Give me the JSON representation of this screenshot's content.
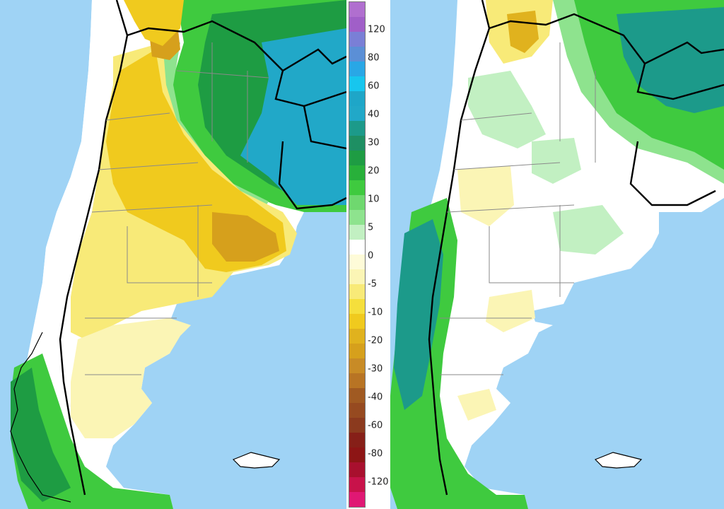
{
  "legend": {
    "labels": [
      "120",
      "80",
      "60",
      "40",
      "30",
      "20",
      "10",
      "5",
      "0",
      "-5",
      "-10",
      "-20",
      "-30",
      "-40",
      "-60",
      "-80",
      "-120"
    ],
    "label_colors": [
      "#a05fc8",
      "#5b8fd6",
      "#17c6ee",
      "#21a8c8",
      "#1c9a8a",
      "#1e9c43",
      "#3fca3f",
      "#8ee38e",
      "#ffffff",
      "#fbf5b5",
      "#f5df3c",
      "#e0b21e",
      "#c88b26",
      "#a05a22",
      "#8b3a1e",
      "#8d1515",
      "#c8124a"
    ],
    "swatches": [
      "#b06fcf",
      "#a05fc8",
      "#7a7fd6",
      "#5b8fd6",
      "#29a7e6",
      "#17c6ee",
      "#1ea6c8",
      "#21a8c8",
      "#1c9a8a",
      "#1e8f63",
      "#1e9c43",
      "#28b03a",
      "#3fca3f",
      "#6fd86f",
      "#8ee38e",
      "#c2f0c2",
      "#ffffff",
      "#fefbd8",
      "#fbf5b5",
      "#f8ea78",
      "#f5df3c",
      "#f0ca1e",
      "#e0b21e",
      "#d6a01c",
      "#c88b26",
      "#b87424",
      "#a05a22",
      "#964a20",
      "#8b3a1e",
      "#861f18",
      "#8d1515",
      "#a8102e",
      "#c8124a",
      "#e01874"
    ]
  },
  "colors": {
    "ocean": "#9fd3f5",
    "land_neutral": "#ffffff",
    "border_country": "#000000",
    "border_province": "#8a8a8a"
  }
}
